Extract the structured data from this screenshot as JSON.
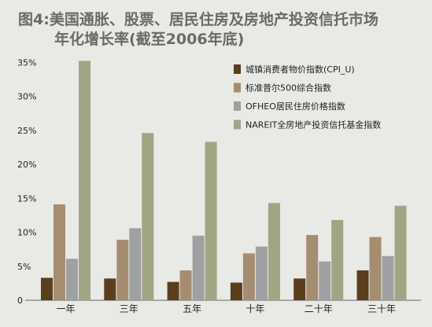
{
  "chart_data": {
    "type": "bar",
    "title_line1": "图4:美国通胀、股票、居民住房及房地产投资信托市场",
    "title_line2": "年化增长率(截至2006年底)",
    "categories": [
      "一年",
      "三年",
      "五年",
      "十年",
      "二十年",
      "三十年"
    ],
    "y_ticks": [
      "0",
      "5%",
      "10%",
      "15%",
      "20%",
      "25%",
      "30%",
      "35%"
    ],
    "ylim": [
      0,
      35
    ],
    "legend_position": "top-right",
    "grid": false,
    "series": [
      {
        "name": "城镇消费者物价指数(CPI_U)",
        "color": "#5a3e1e",
        "values": [
          3.3,
          3.2,
          2.7,
          2.6,
          3.2,
          4.4
        ]
      },
      {
        "name": "标准普尔500综合指数",
        "color": "#a58d72",
        "values": [
          14.1,
          8.9,
          4.4,
          6.9,
          9.6,
          9.3
        ]
      },
      {
        "name": "OFHEO居民住房价格指数",
        "color": "#9fa0a2",
        "values": [
          6.1,
          10.6,
          9.5,
          7.9,
          5.7,
          6.5
        ]
      },
      {
        "name": "NAREIT全房地产投资信托基金指数",
        "color": "#a0a584",
        "values": [
          35.2,
          24.6,
          23.3,
          14.3,
          11.8,
          13.9
        ]
      }
    ]
  }
}
